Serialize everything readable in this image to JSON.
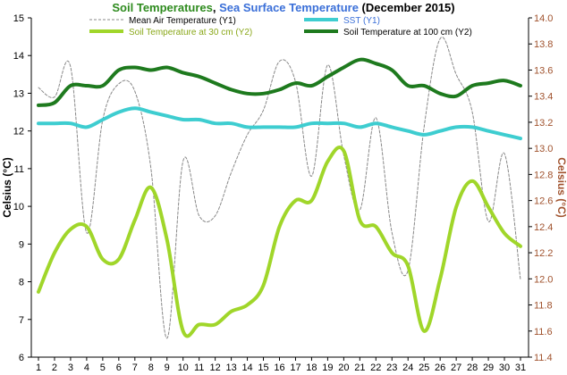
{
  "chart_data": {
    "type": "line",
    "title_parts": [
      {
        "text": "Soil Temperatures",
        "color": "#2e8b1e"
      },
      {
        "text": ", ",
        "color": "#000000"
      },
      {
        "text": "Sea Surface Temperature",
        "color": "#3a6fd8"
      },
      {
        "text": " (December 2015)",
        "color": "#000000"
      }
    ],
    "ylabel": "Celsius (°C)",
    "ylabel2": "Celsius (°C)",
    "ylim": [
      6,
      15
    ],
    "y2lim": [
      11.4,
      14.0
    ],
    "yticks": [
      "6",
      "7",
      "8",
      "9",
      "10",
      "11",
      "12",
      "13",
      "14",
      "15"
    ],
    "y2ticks": [
      "11.4",
      "11.6",
      "11.8",
      "12.0",
      "12.2",
      "12.4",
      "12.6",
      "12.8",
      "13.0",
      "13.2",
      "13.4",
      "13.6",
      "13.8",
      "14.0"
    ],
    "categories": [
      "1",
      "2",
      "3",
      "4",
      "5",
      "6",
      "7",
      "8",
      "9",
      "10",
      "11",
      "12",
      "13",
      "14",
      "15",
      "16",
      "17",
      "18",
      "19",
      "20",
      "21",
      "22",
      "23",
      "24",
      "25",
      "26",
      "27",
      "28",
      "29",
      "30",
      "31"
    ],
    "grid": false,
    "legend_placement": "top",
    "series": [
      {
        "name": "Mean Air Temperature (Y1)",
        "axis": "y1",
        "color": "#888888",
        "style": "dashed",
        "values": [
          13.15,
          12.9,
          13.7,
          9.3,
          12.3,
          13.25,
          13.05,
          11.0,
          6.5,
          11.2,
          9.75,
          9.75,
          10.9,
          11.9,
          12.55,
          13.85,
          13.3,
          10.8,
          13.75,
          11.35,
          9.9,
          12.35,
          9.3,
          8.3,
          12.1,
          14.45,
          13.5,
          12.5,
          9.6,
          11.4,
          8.05
        ]
      },
      {
        "name": "SST (Y1)",
        "axis": "y1",
        "color": "#3ecdd0",
        "style": "solid",
        "values": [
          12.2,
          12.2,
          12.2,
          12.1,
          12.3,
          12.5,
          12.6,
          12.5,
          12.4,
          12.3,
          12.3,
          12.2,
          12.2,
          12.1,
          12.1,
          12.1,
          12.1,
          12.2,
          12.2,
          12.2,
          12.1,
          12.2,
          12.1,
          12.0,
          11.9,
          12.0,
          12.1,
          12.1,
          12.0,
          11.9,
          11.8
        ]
      },
      {
        "name": "Soil Temperature at 30 cm (Y2)",
        "axis": "y2",
        "color": "#a0d62a",
        "style": "solid",
        "values": [
          11.9,
          12.2,
          12.38,
          12.4,
          12.15,
          12.15,
          12.45,
          12.7,
          12.3,
          11.6,
          11.65,
          11.65,
          11.75,
          11.8,
          11.95,
          12.4,
          12.6,
          12.6,
          12.9,
          12.98,
          12.45,
          12.4,
          12.2,
          12.1,
          11.6,
          12.0,
          12.55,
          12.75,
          12.55,
          12.35,
          12.25
        ]
      },
      {
        "name": "Soil Temperature at 100 cm (Y2)",
        "axis": "y2",
        "color": "#1e7a1e",
        "style": "solid",
        "values": [
          13.33,
          13.35,
          13.48,
          13.48,
          13.48,
          13.6,
          13.62,
          13.6,
          13.62,
          13.58,
          13.55,
          13.5,
          13.45,
          13.42,
          13.42,
          13.45,
          13.5,
          13.48,
          13.55,
          13.62,
          13.68,
          13.65,
          13.6,
          13.48,
          13.48,
          13.42,
          13.4,
          13.48,
          13.5,
          13.52,
          13.48
        ]
      }
    ]
  }
}
